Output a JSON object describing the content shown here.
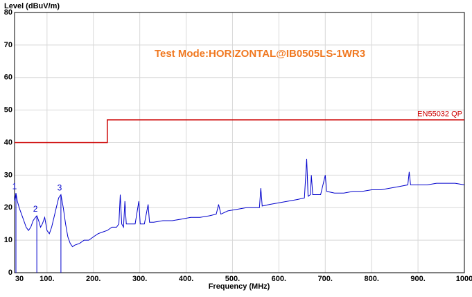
{
  "chart_data": {
    "type": "line",
    "title": "Test Mode:HORIZONTAL@IB0505LS-1WR3",
    "y_label": "Level (dBuV/m)",
    "x_label": "Frequency (MHz)",
    "xlim": [
      30,
      1000
    ],
    "ylim": [
      0,
      80
    ],
    "xticks": [
      30,
      {
        "value": 100,
        "label": "100."
      },
      {
        "value": 200,
        "label": "200."
      },
      {
        "value": 300,
        "label": "300."
      },
      {
        "value": 400,
        "label": "400."
      },
      {
        "value": 500,
        "label": "500."
      },
      {
        "value": 600,
        "label": "600."
      },
      {
        "value": 700,
        "label": "700."
      },
      {
        "value": 800,
        "label": "800."
      },
      {
        "value": 900,
        "label": "900."
      },
      1000
    ],
    "yticks": [
      0,
      10,
      20,
      30,
      40,
      50,
      60,
      70,
      80
    ],
    "grid": true,
    "series": [
      {
        "color": "#0000cc",
        "x": [
          30,
          33,
          36,
          40,
          45,
          50,
          55,
          60,
          65,
          70,
          75,
          78,
          82,
          86,
          90,
          95,
          100,
          105,
          110,
          115,
          120,
          125,
          130,
          135,
          140,
          145,
          150,
          155,
          160,
          170,
          180,
          190,
          200,
          210,
          220,
          230,
          240,
          250,
          255,
          258,
          261,
          265,
          268,
          271,
          280,
          290,
          298,
          301,
          310,
          318,
          321,
          330,
          350,
          370,
          390,
          410,
          430,
          450,
          465,
          470,
          475,
          490,
          510,
          530,
          550,
          558,
          561,
          564,
          580,
          600,
          620,
          640,
          655,
          660,
          663,
          668,
          670,
          673,
          690,
          700,
          703,
          720,
          740,
          760,
          780,
          800,
          820,
          840,
          860,
          878,
          881,
          884,
          900,
          920,
          940,
          960,
          980,
          1000
        ],
        "values": [
          22,
          24.5,
          22,
          20,
          18,
          16,
          14,
          13,
          14,
          16,
          17,
          17.5,
          16,
          14,
          15,
          17,
          13,
          12,
          14,
          17,
          20,
          23,
          24,
          20,
          15,
          11,
          9,
          8,
          8.5,
          9,
          10,
          10,
          11,
          12,
          12.5,
          13,
          14,
          14,
          15,
          24,
          15,
          14,
          22,
          15,
          15,
          15,
          22,
          15,
          15,
          21,
          15.5,
          15.5,
          16,
          16,
          16.5,
          17,
          17,
          17.5,
          18,
          21,
          18,
          19,
          19.5,
          20,
          20,
          20,
          26,
          20.5,
          21,
          21.5,
          22,
          22.5,
          23,
          35,
          23.5,
          24,
          30,
          24,
          24,
          30,
          25,
          24.5,
          24.5,
          25,
          25,
          25.5,
          25.5,
          26,
          26.5,
          27,
          31,
          27,
          27,
          27,
          27.5,
          27.5,
          27.5,
          27
        ]
      },
      {
        "name": "EN55032 QP",
        "color": "#cc0000",
        "x": [
          30,
          230,
          230,
          1000
        ],
        "values": [
          40,
          40,
          47,
          47
        ]
      }
    ],
    "markers": [
      {
        "label": "1",
        "x": 33,
        "value": 24.5
      },
      {
        "label": "2",
        "x": 78,
        "value": 17.5
      },
      {
        "label": "3",
        "x": 130,
        "value": 24
      }
    ]
  }
}
